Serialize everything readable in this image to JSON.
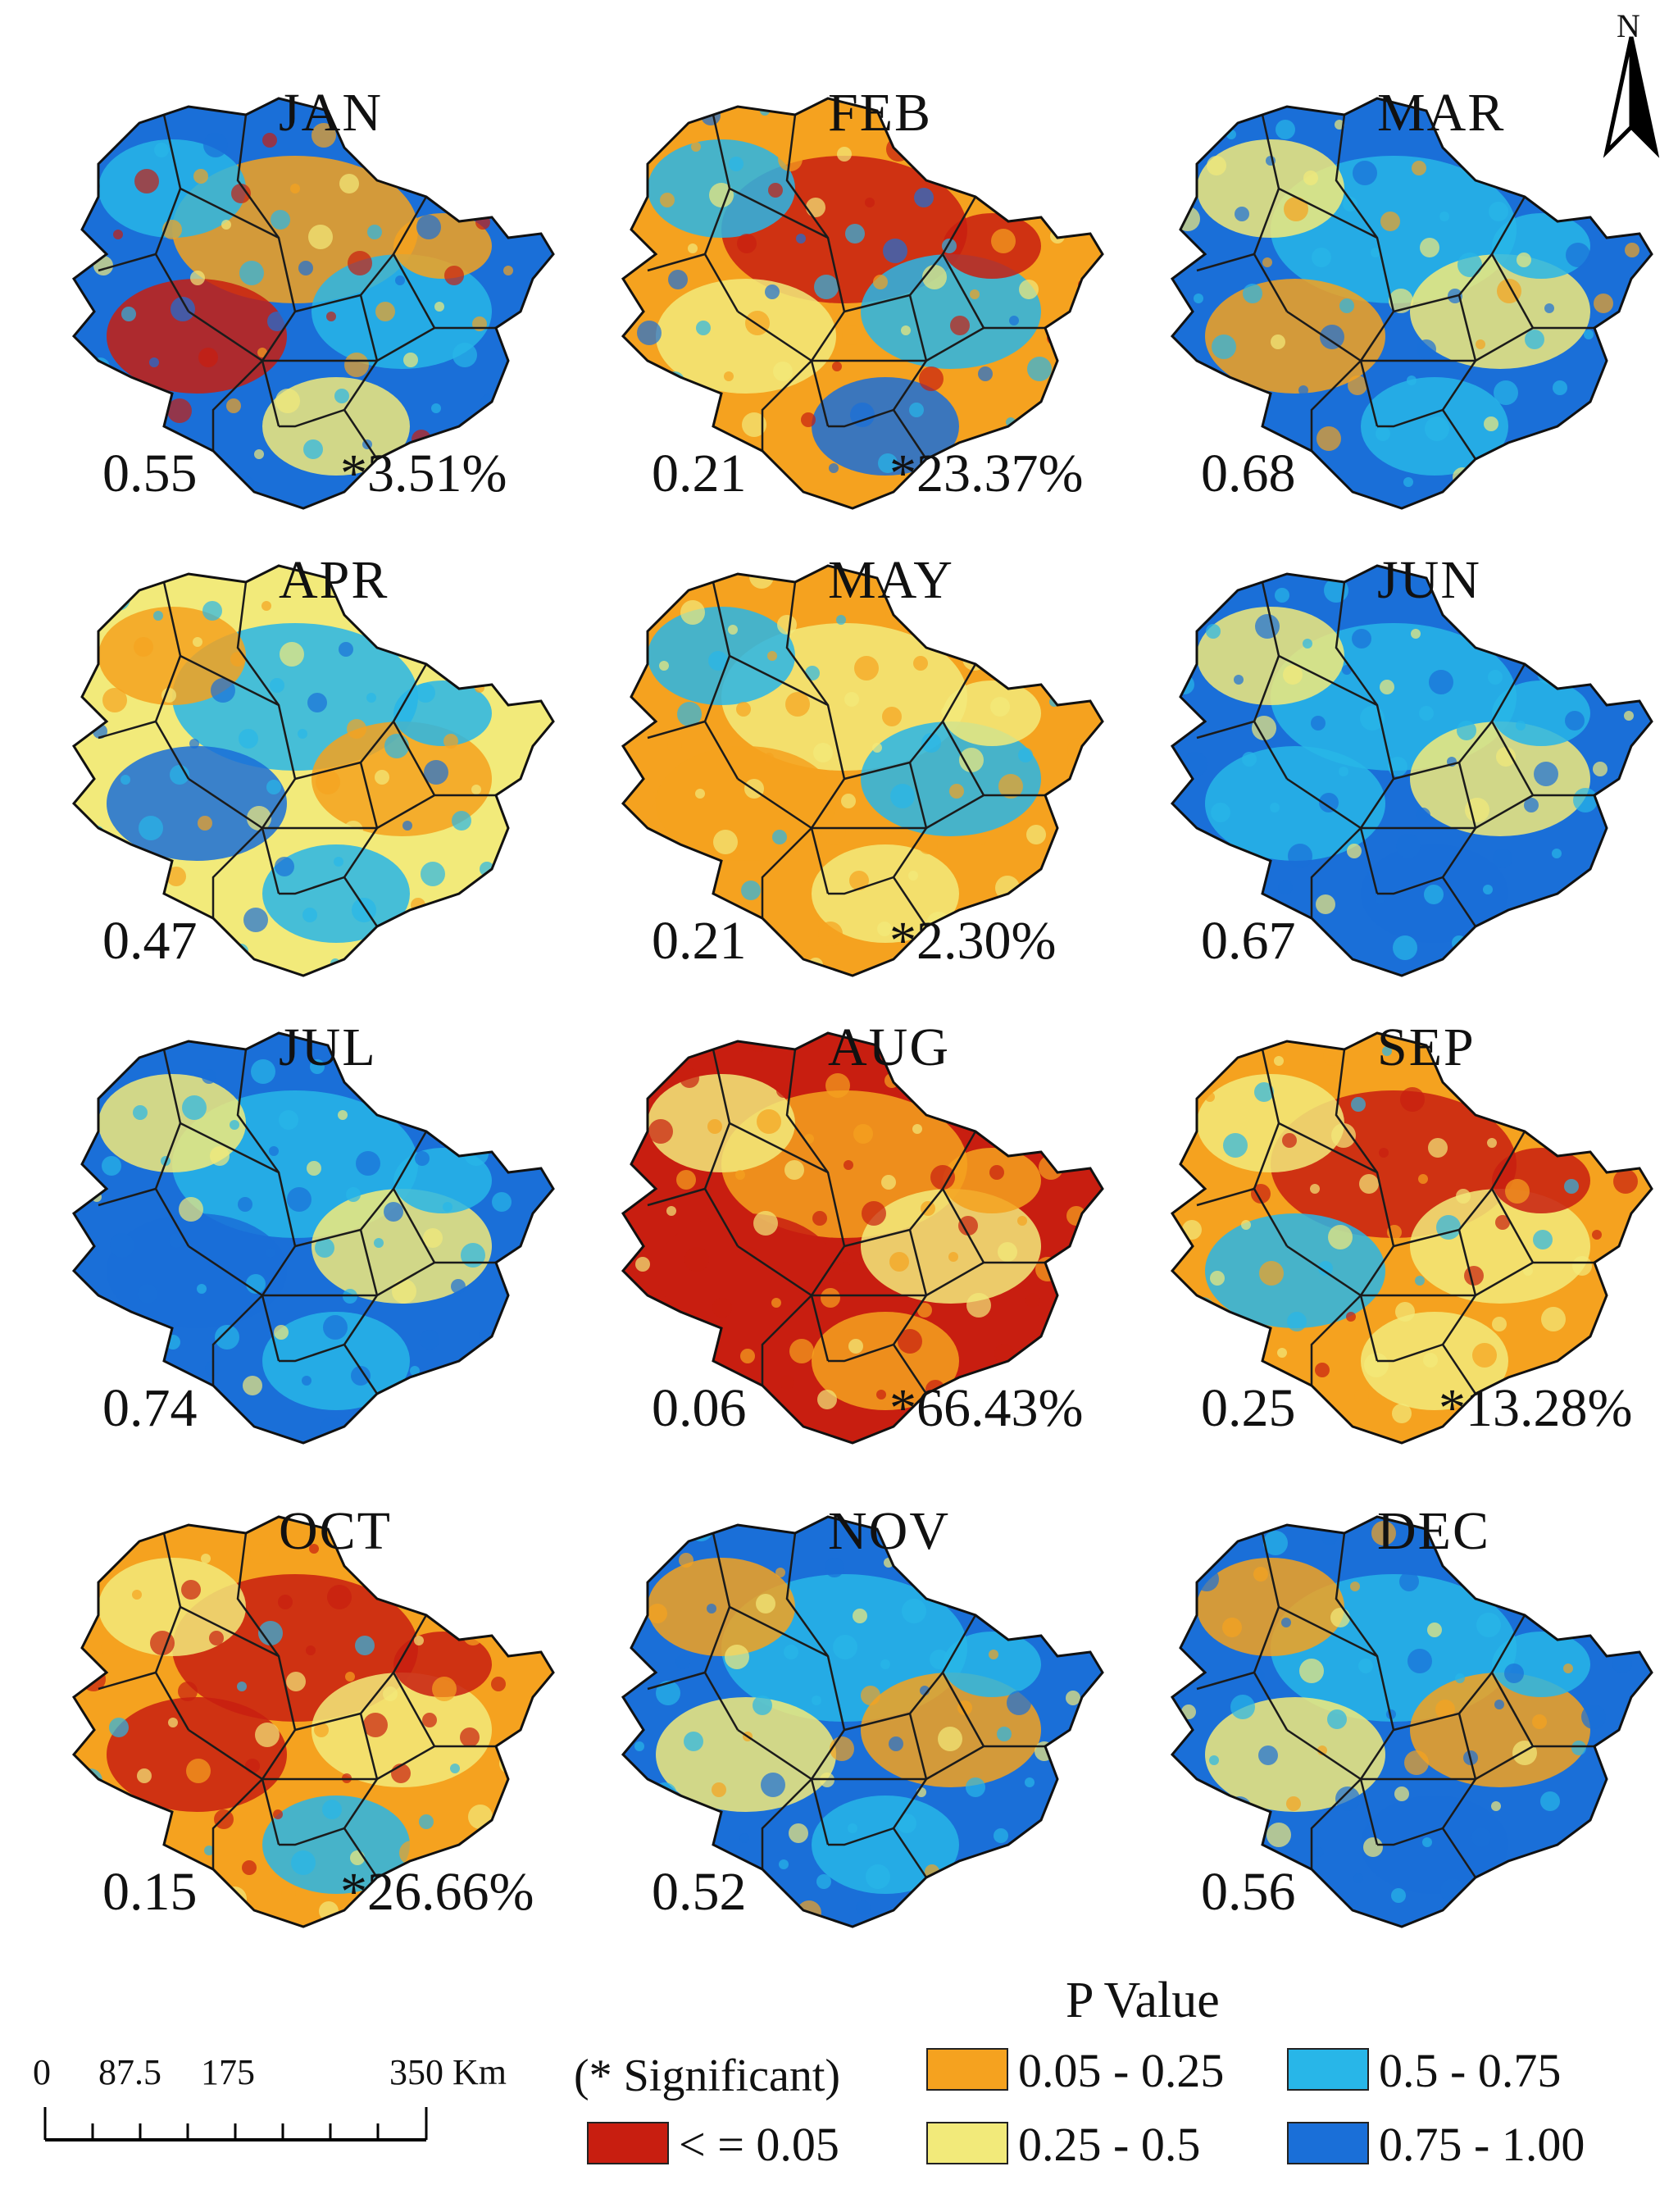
{
  "panels": [
    {
      "month": "JAN",
      "p": "0.55",
      "sig": "*3.51%",
      "base": "#1a6fd8",
      "p1": "#f5a21f",
      "p2": "#28b6e8",
      "p3": "#c81e10",
      "p4": "#f2ea7a"
    },
    {
      "month": "FEB",
      "p": "0.21",
      "sig": "*23.37%",
      "base": "#f5a21f",
      "p1": "#c81e10",
      "p2": "#28b6e8",
      "p3": "#f2ea7a",
      "p4": "#1a6fd8"
    },
    {
      "month": "MAR",
      "p": "0.68",
      "sig": "",
      "base": "#1a6fd8",
      "p1": "#28b6e8",
      "p2": "#f2ea7a",
      "p3": "#f5a21f",
      "p4": "#28b6e8"
    },
    {
      "month": "APR",
      "p": "0.47",
      "sig": "",
      "base": "#f2ea7a",
      "p1": "#28b6e8",
      "p2": "#f5a21f",
      "p3": "#1a6fd8",
      "p4": "#28b6e8"
    },
    {
      "month": "MAY",
      "p": "0.21",
      "sig": "*2.30%",
      "base": "#f5a21f",
      "p1": "#f2ea7a",
      "p2": "#28b6e8",
      "p3": "#f5a21f",
      "p4": "#f2ea7a"
    },
    {
      "month": "JUN",
      "p": "0.67",
      "sig": "",
      "base": "#1a6fd8",
      "p1": "#28b6e8",
      "p2": "#f2ea7a",
      "p3": "#28b6e8",
      "p4": "#1a6fd8"
    },
    {
      "month": "JUL",
      "p": "0.74",
      "sig": "",
      "base": "#1a6fd8",
      "p1": "#28b6e8",
      "p2": "#f2ea7a",
      "p3": "#1a6fd8",
      "p4": "#28b6e8"
    },
    {
      "month": "AUG",
      "p": "0.06",
      "sig": "*66.43%",
      "base": "#c81e10",
      "p1": "#f5a21f",
      "p2": "#f2ea7a",
      "p3": "#c81e10",
      "p4": "#f5a21f"
    },
    {
      "month": "SEP",
      "p": "0.25",
      "sig": "*13.28%",
      "base": "#f5a21f",
      "p1": "#c81e10",
      "p2": "#f2ea7a",
      "p3": "#28b6e8",
      "p4": "#f2ea7a"
    },
    {
      "month": "OCT",
      "p": "0.15",
      "sig": "*26.66%",
      "base": "#f5a21f",
      "p1": "#c81e10",
      "p2": "#f2ea7a",
      "p3": "#c81e10",
      "p4": "#28b6e8"
    },
    {
      "month": "NOV",
      "p": "0.52",
      "sig": "",
      "base": "#1a6fd8",
      "p1": "#28b6e8",
      "p2": "#f5a21f",
      "p3": "#f2ea7a",
      "p4": "#28b6e8"
    },
    {
      "month": "DEC",
      "p": "0.56",
      "sig": "",
      "base": "#1a6fd8",
      "p1": "#28b6e8",
      "p2": "#f5a21f",
      "p3": "#f2ea7a",
      "p4": "#1a6fd8"
    }
  ],
  "north_label": "N",
  "legend": {
    "title": "P Value",
    "significant_note": "(* Significant)",
    "items": [
      {
        "label": "< = 0.05",
        "color": "#c81e10"
      },
      {
        "label": "0.05 - 0.25",
        "color": "#f5a21f"
      },
      {
        "label": "0.25 - 0.5",
        "color": "#f2ea7a"
      },
      {
        "label": "0.5 - 0.75",
        "color": "#28b6e8"
      },
      {
        "label": "0.75 - 1.00",
        "color": "#1a6fd8"
      }
    ]
  },
  "scale_bar": {
    "labels": [
      "0",
      "87.5",
      "175",
      "350 Km"
    ]
  }
}
